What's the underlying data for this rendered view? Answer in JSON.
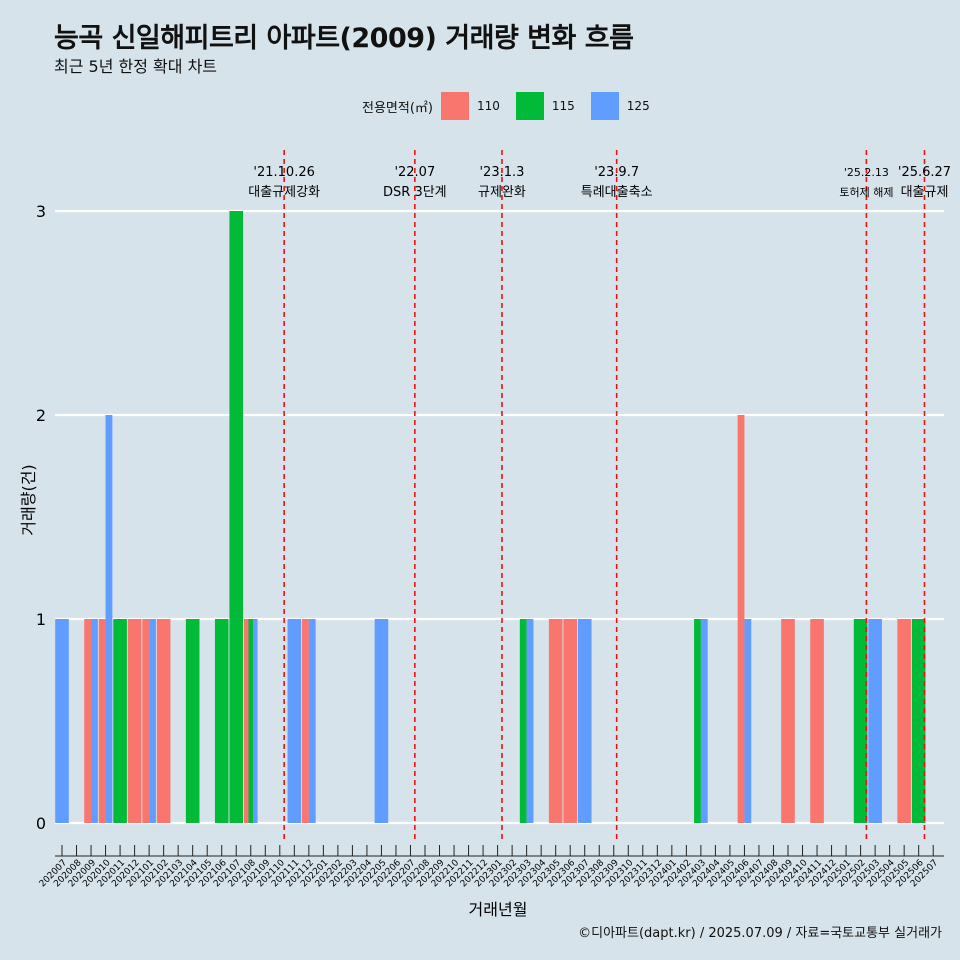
{
  "title": "능곡 신일해피트리 아파트(2009) 거래량 변화 흐름",
  "subtitle": "최근 5년 한정 확대 차트",
  "caption": "©디아파트(dapt.kr) / 2025.07.09 / 자료=국토교통부 실거래가",
  "legend": {
    "title": "전용면적(㎡)",
    "items": [
      {
        "label": "110",
        "color": "#F8766D"
      },
      {
        "label": "115",
        "color": "#00BA38"
      },
      {
        "label": "125",
        "color": "#619CFF"
      }
    ]
  },
  "chart_data": {
    "type": "bar",
    "xlabel": "거래년월",
    "ylabel": "거래량(건)",
    "ylim": [
      0,
      3
    ],
    "yticks": [
      0,
      1,
      2,
      3
    ],
    "categories": [
      "202007",
      "202008",
      "202009",
      "202010",
      "202011",
      "202012",
      "202101",
      "202102",
      "202103",
      "202104",
      "202105",
      "202106",
      "202107",
      "202108",
      "202109",
      "202110",
      "202111",
      "202112",
      "202201",
      "202202",
      "202203",
      "202204",
      "202205",
      "202206",
      "202207",
      "202208",
      "202209",
      "202210",
      "202211",
      "202212",
      "202301",
      "202302",
      "202303",
      "202304",
      "202305",
      "202306",
      "202307",
      "202308",
      "202309",
      "202310",
      "202311",
      "202312",
      "202401",
      "202402",
      "202403",
      "202404",
      "202405",
      "202406",
      "202407",
      "202408",
      "202409",
      "202410",
      "202411",
      "202412",
      "202501",
      "202502",
      "202503",
      "202504",
      "202505",
      "202506",
      "202507"
    ],
    "series": [
      {
        "name": "110",
        "values": [
          0,
          0,
          1,
          1,
          0,
          1,
          1,
          1,
          0,
          0,
          0,
          0,
          0,
          1,
          0,
          0,
          0,
          1,
          0,
          0,
          0,
          0,
          0,
          0,
          0,
          0,
          0,
          0,
          0,
          0,
          0,
          0,
          0,
          0,
          1,
          1,
          0,
          0,
          0,
          0,
          0,
          0,
          0,
          0,
          0,
          0,
          0,
          2,
          0,
          0,
          1,
          0,
          1,
          0,
          0,
          0,
          0,
          0,
          1,
          0,
          0
        ]
      },
      {
        "name": "115",
        "values": [
          0,
          0,
          0,
          0,
          1,
          0,
          0,
          0,
          0,
          1,
          0,
          1,
          3,
          1,
          0,
          0,
          0,
          0,
          0,
          0,
          0,
          0,
          0,
          0,
          0,
          0,
          0,
          0,
          0,
          0,
          0,
          0,
          1,
          0,
          0,
          0,
          0,
          0,
          0,
          0,
          0,
          0,
          0,
          0,
          1,
          0,
          0,
          0,
          0,
          0,
          0,
          0,
          0,
          0,
          0,
          1,
          0,
          0,
          0,
          1,
          0
        ]
      },
      {
        "name": "125",
        "values": [
          1,
          0,
          1,
          2,
          0,
          0,
          1,
          0,
          0,
          0,
          0,
          0,
          0,
          1,
          0,
          0,
          1,
          1,
          0,
          0,
          0,
          0,
          1,
          0,
          0,
          0,
          0,
          0,
          0,
          0,
          0,
          0,
          1,
          0,
          0,
          0,
          1,
          0,
          0,
          0,
          0,
          0,
          0,
          0,
          1,
          0,
          0,
          1,
          0,
          0,
          0,
          0,
          0,
          0,
          0,
          0,
          1,
          0,
          0,
          0,
          0
        ]
      }
    ],
    "events": [
      {
        "x": 15.3,
        "date": "'21.10.26",
        "label": "대출규제강화"
      },
      {
        "x": 24.3,
        "date": "'22.07",
        "label": "DSR 3단계"
      },
      {
        "x": 30.3,
        "date": "'23.1.3",
        "label": "규제완화"
      },
      {
        "x": 38.2,
        "date": "'23.9.7",
        "label": "특례대출축소"
      },
      {
        "x": 55.4,
        "date": "'25.2.13",
        "label": "토허제 해제"
      },
      {
        "x": 59.4,
        "date": "'25.6.27",
        "label": "대출규제"
      }
    ],
    "grid": true,
    "legend_position": "top"
  }
}
